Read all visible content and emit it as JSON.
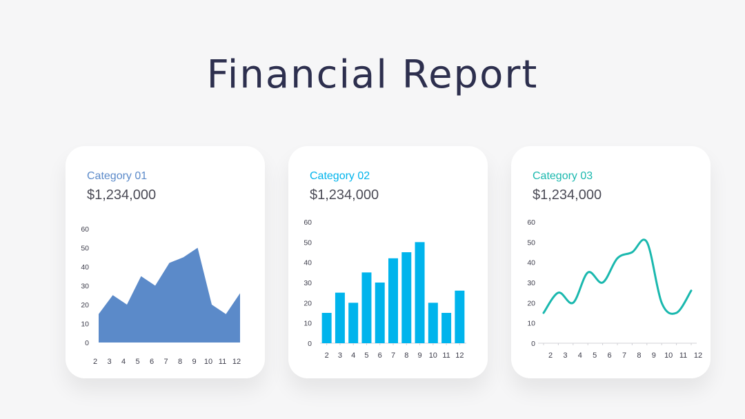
{
  "page": {
    "title": "Financial Report"
  },
  "cards": [
    {
      "category": "Category 01",
      "amount": "$1,234,000",
      "accent": "#5b8ac9"
    },
    {
      "category": "Category 02",
      "amount": "$1,234,000",
      "accent": "#00b4ec"
    },
    {
      "category": "Category 03",
      "amount": "$1,234,000",
      "accent": "#1ab8ae"
    }
  ],
  "chart_data": [
    {
      "type": "area",
      "x": [
        2,
        3,
        4,
        5,
        6,
        7,
        8,
        9,
        10,
        11,
        12
      ],
      "series": [
        {
          "values": [
            15,
            25,
            20,
            35,
            30,
            42,
            45,
            50,
            20,
            15,
            26
          ]
        }
      ],
      "ylim": [
        0,
        60
      ],
      "yticks": [
        0,
        10,
        20,
        30,
        40,
        50,
        60
      ],
      "color": "#5b8ac9",
      "grid": false
    },
    {
      "type": "bar",
      "categories": [
        "2",
        "3",
        "4",
        "5",
        "6",
        "7",
        "8",
        "9",
        "10",
        "11",
        "12"
      ],
      "values": [
        15,
        25,
        20,
        35,
        30,
        42,
        45,
        50,
        20,
        15,
        26
      ],
      "ylim": [
        0,
        60
      ],
      "yticks": [
        0,
        10,
        20,
        30,
        40,
        50,
        60
      ],
      "color": "#00b4ec",
      "grid": false
    },
    {
      "type": "line",
      "x": [
        2,
        3,
        4,
        5,
        6,
        7,
        8,
        9,
        10,
        11,
        12
      ],
      "series": [
        {
          "values": [
            15,
            25,
            20,
            35,
            30,
            42,
            45,
            50,
            20,
            15,
            26
          ]
        }
      ],
      "ylim": [
        0,
        60
      ],
      "yticks": [
        0,
        10,
        20,
        30,
        40,
        50,
        60
      ],
      "color": "#1ab8ae",
      "smooth": true,
      "grid": false
    }
  ]
}
